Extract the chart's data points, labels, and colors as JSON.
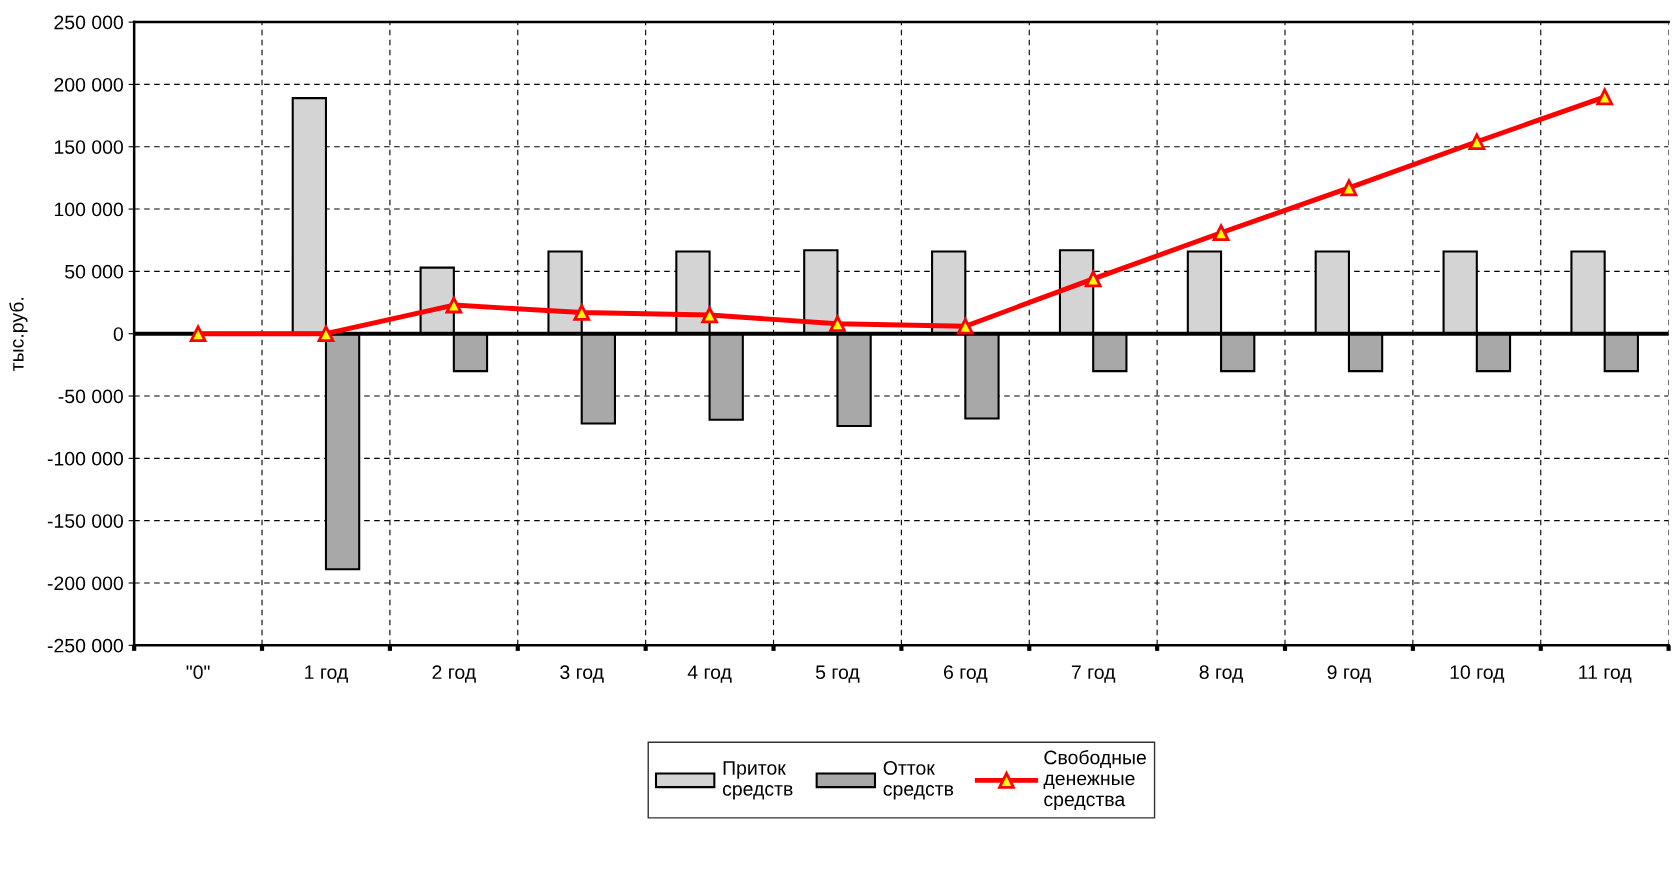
{
  "chart_data": {
    "type": "bar",
    "ylabel": "тыс.руб.",
    "categories": [
      "\"0\"",
      "1 год",
      "2 год",
      "3 год",
      "4 год",
      "5 год",
      "6 год",
      "7 год",
      "8 год",
      "9 год",
      "10 год",
      "11 год"
    ],
    "series": [
      {
        "name": "Приток средств",
        "color": "#d4d4d4",
        "values": [
          null,
          189000,
          53000,
          66000,
          66000,
          67000,
          66000,
          67000,
          66000,
          66000,
          66000,
          66000
        ]
      },
      {
        "name": "Отток средств",
        "color": "#a8a8a8",
        "values": [
          null,
          -189000,
          -30000,
          -72000,
          -69000,
          -74000,
          -68000,
          -30000,
          -30000,
          -30000,
          -30000,
          -30000
        ]
      },
      {
        "name": "Свободные денежные средства",
        "type": "line",
        "color": "#ff0000",
        "values": [
          0,
          0,
          23000,
          17000,
          15000,
          8000,
          6000,
          44000,
          81000,
          117000,
          154000,
          190000
        ]
      }
    ],
    "ylim": [
      -250000,
      250000
    ],
    "yticks": [
      {
        "value": -250000,
        "label": "-250 000"
      },
      {
        "value": -200000,
        "label": "-200 000"
      },
      {
        "value": -150000,
        "label": "-150 000"
      },
      {
        "value": -100000,
        "label": "-100 000"
      },
      {
        "value": -50000,
        "label": "-50 000"
      },
      0,
      {
        "value": 50000,
        "label": "50 000"
      },
      {
        "value": 100000,
        "label": "100 000"
      },
      {
        "value": 150000,
        "label": "150 000"
      },
      {
        "value": 200000,
        "label": "200 000"
      },
      {
        "value": 250000,
        "label": "250 000"
      }
    ],
    "grid": true,
    "legend": "bottom",
    "marker": "triangle",
    "line_style": "solid"
  }
}
